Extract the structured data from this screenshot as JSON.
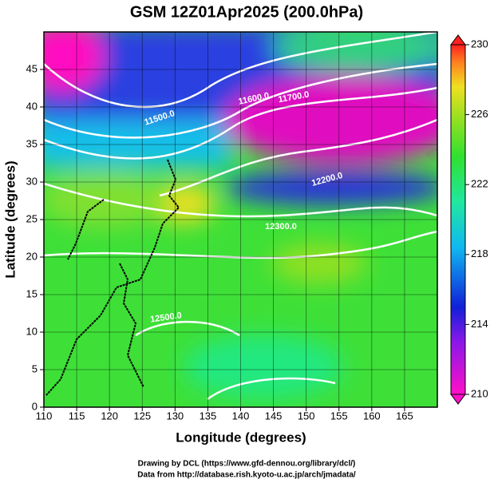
{
  "chart_data": {
    "type": "map",
    "title": "GSM 12Z01Apr2025 (200.0hPa)",
    "x_label": "Longitude (degrees)",
    "y_label": "Latitude  (degrees)",
    "xlim": [
      110,
      170
    ],
    "xticks": [
      110,
      115,
      120,
      125,
      130,
      135,
      140,
      145,
      150,
      155,
      160,
      165
    ],
    "ylim": [
      0,
      50
    ],
    "yticks": [
      0,
      5,
      10,
      15,
      20,
      25,
      30,
      35,
      40,
      45
    ],
    "grid": true,
    "colorbar": {
      "lim": [
        210,
        230
      ],
      "ticks": [
        210,
        214,
        218,
        222,
        226,
        230
      ]
    },
    "contour_labels": [
      "11500.0",
      "11600.0",
      "11700.0",
      "12200.0",
      "12300.0",
      "12500.0"
    ]
  },
  "footer": [
    "Drawing by DCL (https://www.gfd-dennou.org/library/dcl/)",
    "Data from http://database.rish.kyoto-u.ac.jp/arch/jmadata/"
  ]
}
